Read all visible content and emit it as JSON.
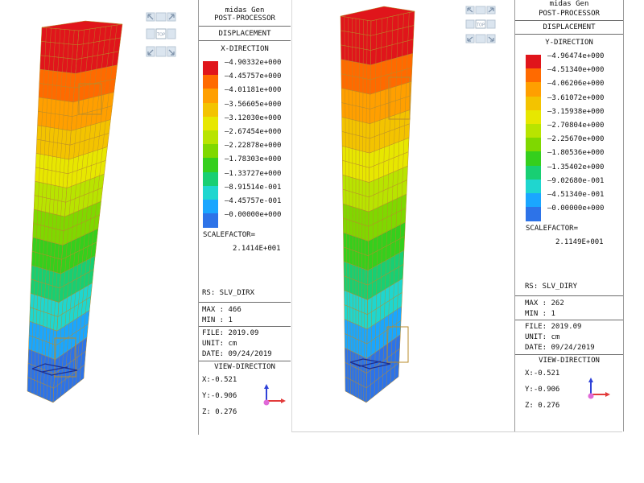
{
  "left": {
    "program": "midas Gen",
    "module": "POST-PROCESSOR",
    "result_type": "DISPLACEMENT",
    "direction": "X-DIRECTION",
    "legend_values": [
      "4.90332e+000",
      "4.45757e+000",
      "4.01181e+000",
      "3.56605e+000",
      "3.12030e+000",
      "2.67454e+000",
      "2.22878e+000",
      "1.78303e+000",
      "1.33727e+000",
      "8.91514e-001",
      "4.45757e-001",
      "0.00000e+000"
    ],
    "scalefactor_label": "SCALEFACTOR=",
    "scalefactor_value": "2.1414E+001",
    "rs": "RS: SLV_DIRX",
    "max": "MAX : 466",
    "min": "MIN : 1",
    "file": "FILE: 2019.09",
    "unit": "UNIT: cm",
    "date": "DATE: 09/24/2019",
    "view_direction": "VIEW-DIRECTION",
    "vx": "X:-0.521",
    "vy": "Y:-0.906",
    "vz": "Z: 0.276"
  },
  "right": {
    "program": "midas Gen",
    "module": "POST-PROCESSOR",
    "result_type": "DISPLACEMENT",
    "direction": "Y-DIRECTION",
    "legend_values": [
      "4.96474e+000",
      "4.51340e+000",
      "4.06206e+000",
      "3.61072e+000",
      "3.15938e+000",
      "2.70804e+000",
      "2.25670e+000",
      "1.80536e+000",
      "1.35402e+000",
      "9.02680e-001",
      "4.51340e-001",
      "0.00000e+000"
    ],
    "scalefactor_label": "SCALEFACTOR=",
    "scalefactor_value": "2.1149E+001",
    "rs": "RS: SLV_DIRY",
    "max": "MAX : 262",
    "min": "MIN : 1",
    "file": "FILE: 2019.09",
    "unit": "UNIT: cm",
    "date": "DATE: 09/24/2019",
    "view_direction": "VIEW-DIRECTION",
    "vx": "X:-0.521",
    "vy": "Y:-0.906",
    "vz": "Z: 0.276"
  },
  "nav_label": "TOP",
  "colors": {
    "legend_scale": [
      "#e0151b",
      "#ff6a00",
      "#ff9f00",
      "#f3c300",
      "#e7e700",
      "#b8e400",
      "#7fd800",
      "#35cf1d",
      "#18cf73",
      "#1fd6cf",
      "#1aa6ff",
      "#2d73e8"
    ],
    "mesh_line": "#b98b2a"
  }
}
